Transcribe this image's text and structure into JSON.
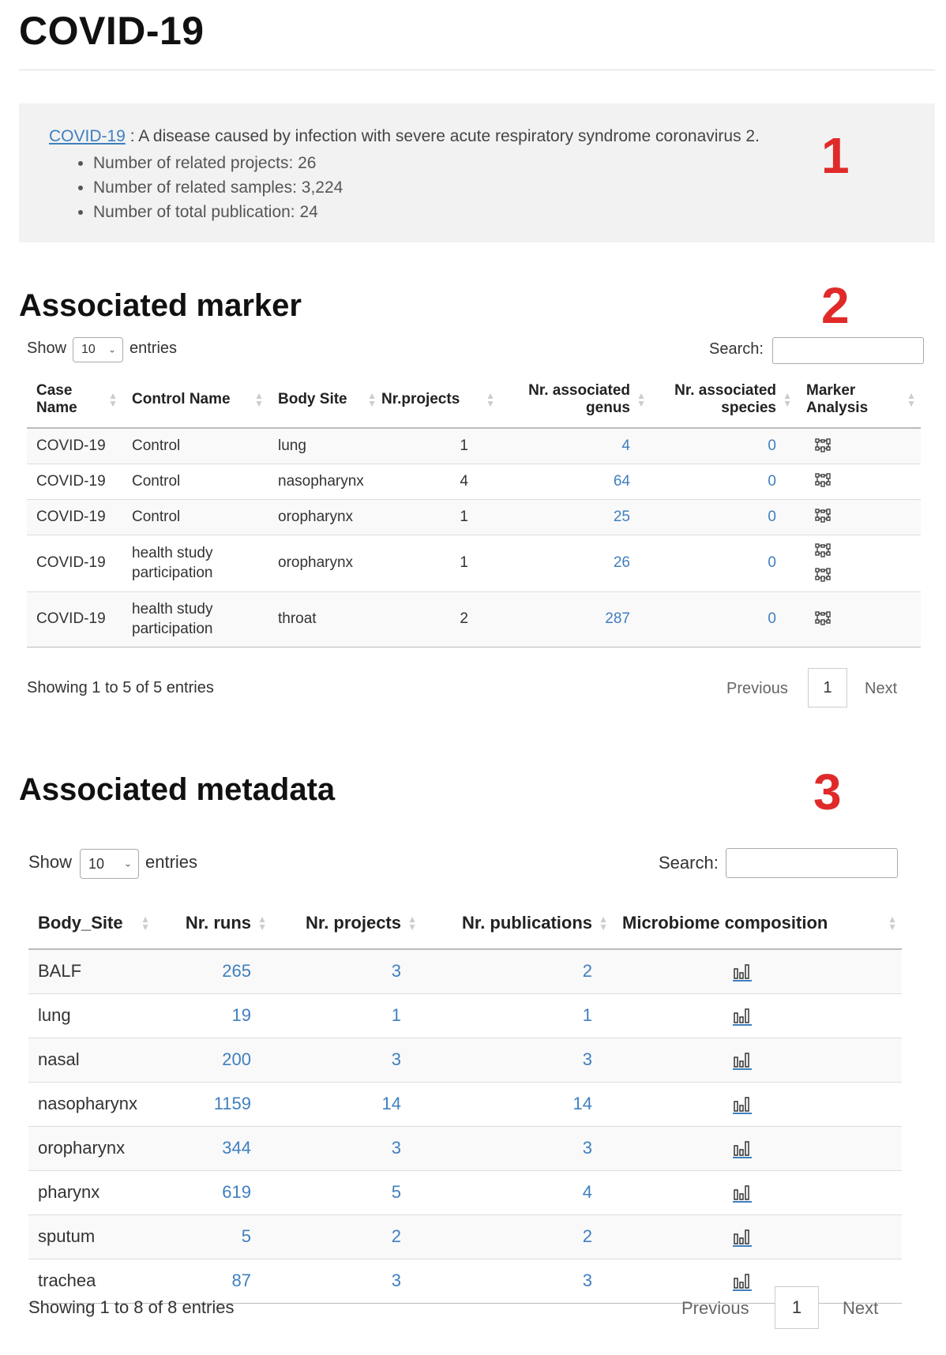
{
  "page": {
    "title": "COVID-19"
  },
  "info": {
    "disease_link": "COVID-19",
    "description": " : A disease caused by infection with severe acute respiratory syndrome coronavirus 2.",
    "stats": [
      "Number of related projects: 26",
      "Number of related samples: 3,224",
      "Number of total publication: 24"
    ]
  },
  "markers": {
    "one": "1",
    "two": "2",
    "three": "3"
  },
  "marker_section": {
    "title": "Associated marker",
    "show_label": "Show",
    "entries_value": "10",
    "entries_label": "entries",
    "search_label": "Search:",
    "columns": [
      "Case Name",
      "Control Name",
      "Body Site",
      "Nr.projects",
      "Nr. associated genus",
      "Nr. associated species",
      "Marker Analysis"
    ],
    "rows": [
      {
        "case": "COVID-19",
        "control": "Control",
        "site": "lung",
        "projects": "1",
        "genus": "4",
        "species": "0",
        "icons": 1
      },
      {
        "case": "COVID-19",
        "control": "Control",
        "site": "nasopharynx",
        "projects": "4",
        "genus": "64",
        "species": "0",
        "icons": 1
      },
      {
        "case": "COVID-19",
        "control": "Control",
        "site": "oropharynx",
        "projects": "1",
        "genus": "25",
        "species": "0",
        "icons": 1
      },
      {
        "case": "COVID-19",
        "control": "health study participation",
        "site": "oropharynx",
        "projects": "1",
        "genus": "26",
        "species": "0",
        "icons": 2
      },
      {
        "case": "COVID-19",
        "control": "health study participation",
        "site": "throat",
        "projects": "2",
        "genus": "287",
        "species": "0",
        "icons": 1
      }
    ],
    "showing": "Showing 1 to 5 of 5 entries",
    "previous": "Previous",
    "page": "1",
    "next": "Next",
    "icon": "marker-analysis-icon"
  },
  "metadata_section": {
    "title": "Associated metadata",
    "show_label": "Show",
    "entries_value": "10",
    "entries_label": "entries",
    "search_label": "Search:",
    "columns": [
      "Body_Site",
      "Nr. runs",
      "Nr. projects",
      "Nr. publications",
      "Microbiome composition"
    ],
    "rows": [
      {
        "site": "BALF",
        "runs": "265",
        "projects": "3",
        "pubs": "2"
      },
      {
        "site": "lung",
        "runs": "19",
        "projects": "1",
        "pubs": "1"
      },
      {
        "site": "nasal",
        "runs": "200",
        "projects": "3",
        "pubs": "3"
      },
      {
        "site": "nasopharynx",
        "runs": "1159",
        "projects": "14",
        "pubs": "14"
      },
      {
        "site": "oropharynx",
        "runs": "344",
        "projects": "3",
        "pubs": "3"
      },
      {
        "site": "pharynx",
        "runs": "619",
        "projects": "5",
        "pubs": "4"
      },
      {
        "site": "sputum",
        "runs": "5",
        "projects": "2",
        "pubs": "2"
      },
      {
        "site": "trachea",
        "runs": "87",
        "projects": "3",
        "pubs": "3"
      }
    ],
    "showing": "Showing 1 to 8 of 8 entries",
    "previous": "Previous",
    "page": "1",
    "next": "Next",
    "icon": "bar-chart-icon"
  },
  "colors": {
    "link": "#3f7fbf",
    "marker": "#e02a2a",
    "info_bg": "#f2f2f2"
  }
}
